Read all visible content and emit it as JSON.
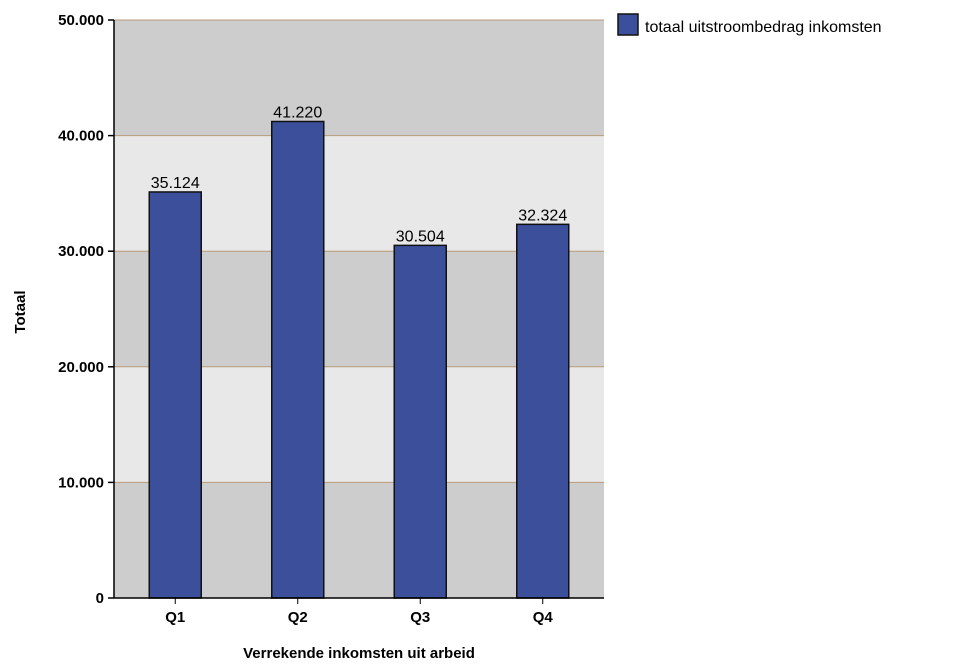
{
  "colors": {
    "bar_fill": "#3b4f9a",
    "bar_stroke": "#111111",
    "band_dark": "#cdcdcd",
    "band_light": "#e8e8e8",
    "gridline": "#b89b7a",
    "axis": "#000000"
  },
  "chart_data": {
    "type": "bar",
    "categories": [
      "Q1",
      "Q2",
      "Q3",
      "Q4"
    ],
    "series": [
      {
        "name": "totaal uitstroombedrag inkomsten",
        "values": [
          35124,
          41220,
          30504,
          32324
        ]
      }
    ],
    "data_labels": [
      "35.124",
      "41.220",
      "30.504",
      "32.324"
    ],
    "xlabel": "Verrekende inkomsten uit arbeid",
    "ylabel": "Totaal",
    "ylim": [
      0,
      50000
    ],
    "yticks": [
      0,
      10000,
      20000,
      30000,
      40000,
      50000
    ],
    "ytick_labels": [
      "0",
      "10.000",
      "20.000",
      "30.000",
      "40.000",
      "50.000"
    ],
    "grid": true,
    "legend_position": "top-right"
  }
}
